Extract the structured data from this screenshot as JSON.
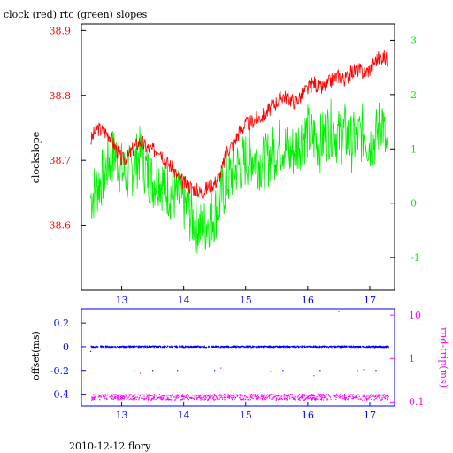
{
  "header": {
    "title": "clock (red) rtc (green) slopes"
  },
  "footer": {
    "caption": "2010-12-12 flory"
  },
  "colors": {
    "clock": "#ff0000",
    "rtc": "#00ee00",
    "offset": "#0000ff",
    "rndtrip": "#ff00ff",
    "axis": "#000000"
  },
  "chart_data": [
    {
      "type": "line",
      "xlim": [
        12.35,
        17.4
      ],
      "x_ticks": [
        "13",
        "14",
        "15",
        "16",
        "17"
      ],
      "x_tick_values": [
        13,
        14,
        15,
        16,
        17
      ],
      "ylabel": "clockslope",
      "ylim": [
        38.5,
        38.91
      ],
      "y_ticks": [
        "38.6",
        "38.7",
        "38.8",
        "38.9"
      ],
      "y_tick_values": [
        38.6,
        38.7,
        38.8,
        38.9
      ],
      "y2lim": [
        -1.6,
        3.3
      ],
      "y2_ticks": [
        "-1",
        "0",
        "1",
        "2",
        "3"
      ],
      "y2_tick_values": [
        -1,
        0,
        1,
        2,
        3
      ],
      "legend": "none",
      "grid": false,
      "series": [
        {
          "name": "clock",
          "axis": "left",
          "x": [
            12.5,
            12.6,
            12.7,
            12.8,
            12.9,
            13.0,
            13.1,
            13.2,
            13.3,
            13.4,
            13.5,
            13.6,
            13.7,
            13.8,
            13.9,
            14.0,
            14.1,
            14.2,
            14.3,
            14.4,
            14.5,
            14.6,
            14.7,
            14.8,
            14.9,
            15.0,
            15.1,
            15.2,
            15.3,
            15.4,
            15.5,
            15.6,
            15.7,
            15.8,
            15.9,
            16.0,
            16.1,
            16.2,
            16.3,
            16.4,
            16.5,
            16.6,
            16.7,
            16.8,
            16.9,
            17.0,
            17.1,
            17.2,
            17.3
          ],
          "values": [
            38.73,
            38.75,
            38.745,
            38.74,
            38.72,
            38.7,
            38.705,
            38.72,
            38.73,
            38.72,
            38.715,
            38.72,
            38.7,
            38.69,
            38.675,
            38.665,
            38.66,
            38.655,
            38.65,
            38.66,
            38.665,
            38.68,
            38.715,
            38.725,
            38.745,
            38.755,
            38.76,
            38.765,
            38.77,
            38.78,
            38.79,
            38.8,
            38.795,
            38.79,
            38.8,
            38.81,
            38.82,
            38.81,
            38.815,
            38.825,
            38.83,
            38.825,
            38.835,
            38.84,
            38.835,
            38.84,
            38.855,
            38.86,
            38.855
          ]
        },
        {
          "name": "rtc",
          "axis": "right",
          "x": [
            12.5,
            12.6,
            12.7,
            12.8,
            12.9,
            13.0,
            13.1,
            13.2,
            13.3,
            13.4,
            13.5,
            13.6,
            13.7,
            13.8,
            13.9,
            14.0,
            14.1,
            14.2,
            14.3,
            14.4,
            14.5,
            14.6,
            14.7,
            14.8,
            14.9,
            15.0,
            15.1,
            15.2,
            15.3,
            15.4,
            15.5,
            15.6,
            15.7,
            15.8,
            15.9,
            16.0,
            16.1,
            16.2,
            16.3,
            16.4,
            16.5,
            16.6,
            16.7,
            16.8,
            16.9,
            17.0,
            17.1,
            17.2,
            17.3
          ],
          "values": [
            0.1,
            0.3,
            0.5,
            0.8,
            0.9,
            0.6,
            0.5,
            0.7,
            0.9,
            0.6,
            0.4,
            0.5,
            0.3,
            0.2,
            0.1,
            0.0,
            -0.2,
            -0.4,
            -0.5,
            -0.3,
            -0.2,
            0.1,
            0.4,
            0.6,
            0.7,
            0.8,
            0.9,
            0.8,
            0.7,
            0.9,
            1.0,
            1.1,
            0.9,
            1.0,
            1.2,
            1.3,
            1.2,
            1.1,
            1.3,
            1.4,
            1.2,
            1.3,
            1.1,
            1.2,
            1.3,
            1.1,
            1.2,
            1.6,
            0.6
          ]
        }
      ]
    },
    {
      "type": "scatter",
      "xlim": [
        12.35,
        17.4
      ],
      "x_ticks": [
        "13",
        "14",
        "15",
        "16",
        "17"
      ],
      "x_tick_values": [
        13,
        14,
        15,
        16,
        17
      ],
      "ylabel": "offset(ms)",
      "ylim": [
        -0.5,
        0.32
      ],
      "y_ticks": [
        "0.2",
        "0",
        "-0.2",
        "-0.4"
      ],
      "y_tick_values": [
        0.2,
        0,
        -0.2,
        -0.4
      ],
      "y2label": "rnd-trip(ms)",
      "y2scale": "log",
      "y2lim": [
        0.08,
        14
      ],
      "y2_ticks": [
        "10",
        "1",
        "0.1"
      ],
      "y2_tick_values": [
        10,
        1,
        0.1
      ],
      "legend": "none",
      "grid": false,
      "series": [
        {
          "name": "offset",
          "axis": "left",
          "x_range": [
            12.5,
            17.3
          ],
          "level": 0.0,
          "spread": 0.006,
          "outliers": [
            {
              "x": 12.5,
              "y": -0.04
            },
            {
              "x": 13.2,
              "y": -0.2
            },
            {
              "x": 13.5,
              "y": -0.2
            },
            {
              "x": 13.9,
              "y": -0.2
            },
            {
              "x": 14.5,
              "y": -0.2
            },
            {
              "x": 15.6,
              "y": -0.2
            },
            {
              "x": 16.2,
              "y": -0.2
            },
            {
              "x": 16.8,
              "y": -0.2
            },
            {
              "x": 17.1,
              "y": -0.2
            }
          ]
        },
        {
          "name": "rnd-trip",
          "axis": "right",
          "x_range": [
            12.5,
            17.3
          ],
          "level": 0.13,
          "spread": 0.02,
          "outliers": [
            {
              "x": 16.5,
              "y": 12
            },
            {
              "x": 13.3,
              "y": 0.45
            },
            {
              "x": 14.6,
              "y": 0.6
            },
            {
              "x": 15.4,
              "y": 0.5
            },
            {
              "x": 16.1,
              "y": 0.4
            },
            {
              "x": 16.9,
              "y": 0.55
            }
          ]
        }
      ]
    }
  ]
}
